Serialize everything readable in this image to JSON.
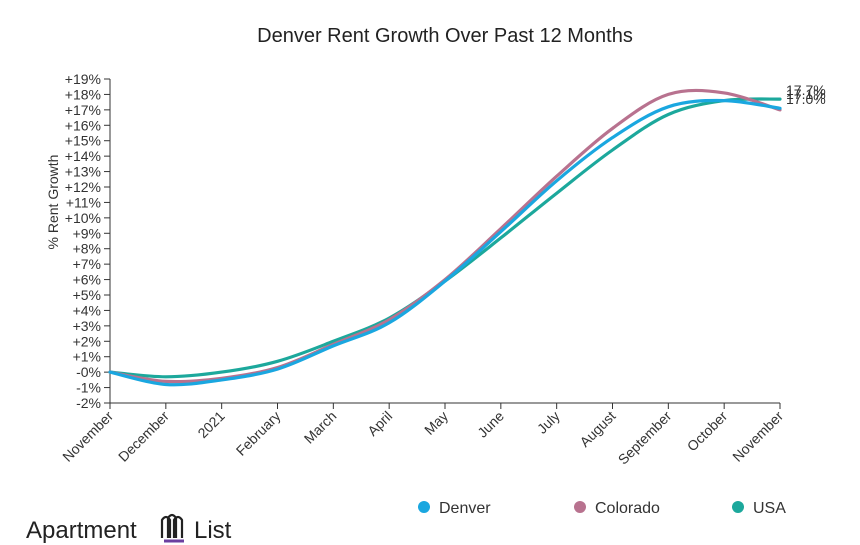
{
  "chart_data": {
    "type": "line",
    "title": "Denver Rent Growth Over Past 12 Months",
    "ylabel": "% Rent Growth",
    "xlabel": "",
    "categories": [
      "November",
      "December",
      "2021",
      "February",
      "March",
      "April",
      "May",
      "June",
      "July",
      "August",
      "September",
      "October",
      "November"
    ],
    "y_ticks": [
      "-2%",
      "-1%",
      "-0%",
      "+1%",
      "+2%",
      "+3%",
      "+4%",
      "+5%",
      "+6%",
      "+7%",
      "+8%",
      "+9%",
      "+10%",
      "+11%",
      "+12%",
      "+13%",
      "+14%",
      "+15%",
      "+16%",
      "+17%",
      "+18%",
      "+19%"
    ],
    "ylim": [
      -2,
      19
    ],
    "grid": false,
    "legend_position": "bottom-right",
    "series": [
      {
        "name": "Denver",
        "color": "#1aa7e0",
        "values": [
          0.0,
          -0.8,
          -0.5,
          0.2,
          1.7,
          3.2,
          5.9,
          9.1,
          12.4,
          15.2,
          17.2,
          17.6,
          17.1
        ],
        "end_label": "17.1%"
      },
      {
        "name": "Colorado",
        "color": "#b8728f",
        "values": [
          0.0,
          -0.6,
          -0.4,
          0.3,
          1.8,
          3.4,
          6.0,
          9.3,
          12.7,
          15.8,
          18.0,
          18.1,
          17.0
        ],
        "end_label": "17.0%"
      },
      {
        "name": "USA",
        "color": "#1ca89c",
        "values": [
          0.0,
          -0.3,
          0.0,
          0.7,
          2.0,
          3.5,
          5.9,
          8.7,
          11.6,
          14.4,
          16.7,
          17.6,
          17.7
        ],
        "end_label": "17.7%"
      }
    ]
  },
  "brand": {
    "name_left": "Apartment",
    "name_right": "List"
  }
}
